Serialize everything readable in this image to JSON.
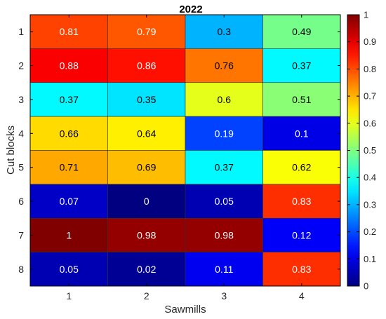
{
  "chart_data": {
    "type": "heatmap",
    "title": "2022",
    "xlabel": "Sawmills",
    "ylabel": "Cut blocks",
    "x_categories": [
      "1",
      "2",
      "3",
      "4"
    ],
    "y_categories": [
      "1",
      "2",
      "3",
      "4",
      "5",
      "6",
      "7",
      "8"
    ],
    "values": [
      [
        0.81,
        0.79,
        0.3,
        0.49
      ],
      [
        0.88,
        0.86,
        0.76,
        0.37
      ],
      [
        0.37,
        0.35,
        0.6,
        0.51
      ],
      [
        0.66,
        0.64,
        0.19,
        0.1
      ],
      [
        0.71,
        0.69,
        0.37,
        0.62
      ],
      [
        0.07,
        0,
        0.05,
        0.83
      ],
      [
        1,
        0.98,
        0.98,
        0.12
      ],
      [
        0.05,
        0.02,
        0.11,
        0.83
      ]
    ],
    "value_labels": [
      [
        "0.81",
        "0.79",
        "0.3",
        "0.49"
      ],
      [
        "0.88",
        "0.86",
        "0.76",
        "0.37"
      ],
      [
        "0.37",
        "0.35",
        "0.6",
        "0.51"
      ],
      [
        "0.66",
        "0.64",
        "0.19",
        "0.1"
      ],
      [
        "0.71",
        "0.69",
        "0.37",
        "0.62"
      ],
      [
        "0.07",
        "0",
        "0.05",
        "0.83"
      ],
      [
        "1",
        "0.98",
        "0.98",
        "0.12"
      ],
      [
        "0.05",
        "0.02",
        "0.11",
        "0.83"
      ]
    ],
    "colormap": "jet",
    "color_limits": [
      0,
      1
    ],
    "colorbar_ticks": [
      "0",
      "0.1",
      "0.2",
      "0.3",
      "0.4",
      "0.5",
      "0.6",
      "0.7",
      "0.8",
      "0.9",
      "1"
    ],
    "colorbar_tick_values": [
      0,
      0.1,
      0.2,
      0.3,
      0.4,
      0.5,
      0.6,
      0.7,
      0.8,
      0.9,
      1
    ],
    "grid": false,
    "legend": "colorbar-right"
  }
}
